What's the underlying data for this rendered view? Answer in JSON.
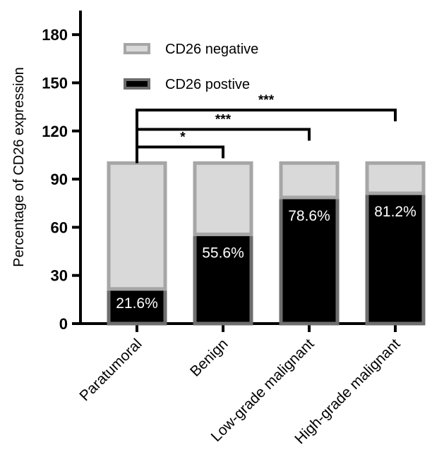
{
  "chart_data": {
    "type": "bar",
    "stacked": true,
    "categories": [
      "Paratumoral",
      "Benign",
      "Low-grade malignant",
      "High-grade malignant"
    ],
    "series": [
      {
        "name": "CD26 postive",
        "values": [
          21.6,
          55.6,
          78.6,
          81.2
        ],
        "fill": "#000000",
        "stroke": "#6e6e6e"
      },
      {
        "name": "CD26 negative",
        "values": [
          78.4,
          44.4,
          21.4,
          18.8
        ],
        "fill": "#d9d9d9",
        "stroke": "#a6a6a6"
      }
    ],
    "data_labels": [
      "21.6%",
      "55.6%",
      "78.6%",
      "81.2%"
    ],
    "ylabel": "Percentage of CD26 expression",
    "xlabel": "",
    "ylim": [
      0,
      195
    ],
    "yticks": [
      0,
      30,
      60,
      90,
      120,
      150,
      180
    ],
    "ytick_labels": [
      "0",
      "30",
      "60",
      "90",
      "120",
      "150",
      "180"
    ],
    "legend": {
      "placement": "top-left",
      "items": [
        {
          "label": "CD26 negative",
          "fill": "#d9d9d9",
          "stroke": "#a6a6a6"
        },
        {
          "label": "CD26 postive",
          "fill": "#000000",
          "stroke": "#6e6e6e"
        }
      ]
    },
    "significance": [
      {
        "from": 0,
        "to": 1,
        "label": "*",
        "y": 110
      },
      {
        "from": 0,
        "to": 2,
        "label": "***",
        "y": 121
      },
      {
        "from": 0,
        "to": 3,
        "label": "***",
        "y": 133
      }
    ],
    "grid": false
  }
}
